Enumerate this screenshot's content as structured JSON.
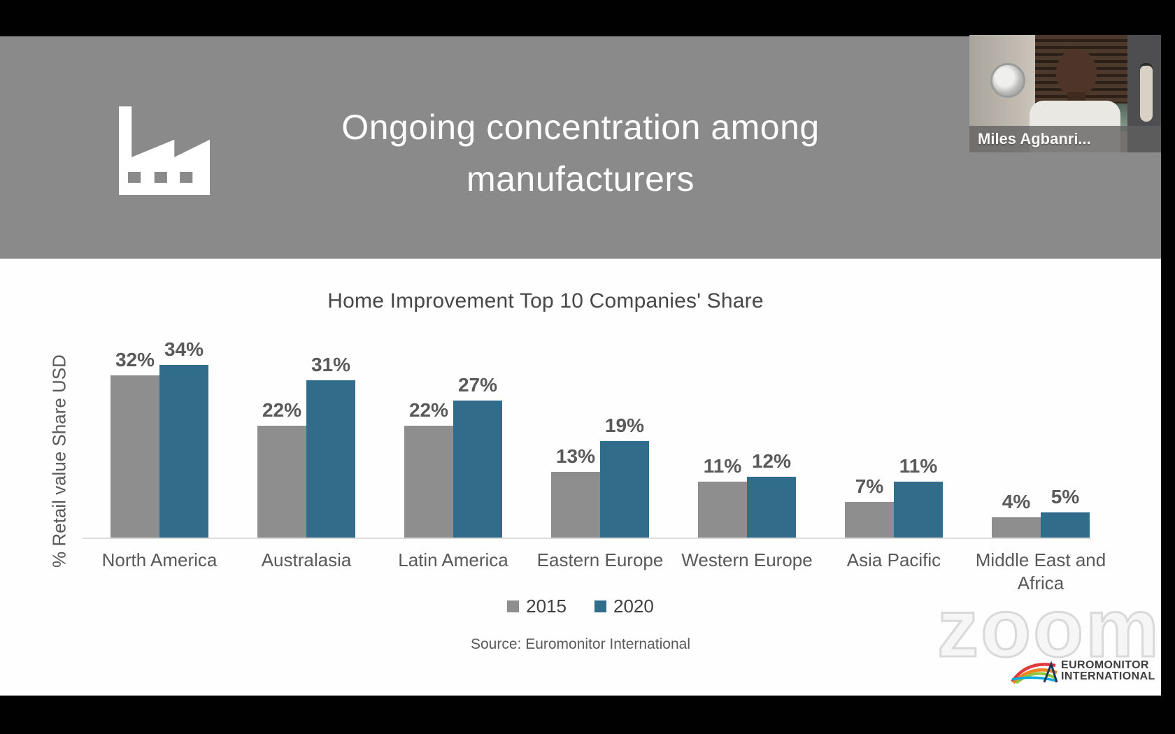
{
  "header": {
    "title_line1": "Ongoing concentration among",
    "title_line2": "manufacturers"
  },
  "webcam": {
    "name": "Miles Agbanri..."
  },
  "chart_data": {
    "type": "bar",
    "title": "Home Improvement Top 10 Companies' Share",
    "ylabel": "% Retail value Share USD",
    "xlabel": "",
    "categories": [
      "North America",
      "Australasia",
      "Latin America",
      "Eastern Europe",
      "Western Europe",
      "Asia Pacific",
      "Middle East and Africa"
    ],
    "series": [
      {
        "name": "2015",
        "color": "#8e8e8e",
        "values": [
          32,
          22,
          22,
          13,
          11,
          7,
          4
        ]
      },
      {
        "name": "2020",
        "color": "#316c8b",
        "values": [
          34,
          31,
          27,
          19,
          12,
          11,
          5
        ]
      }
    ],
    "value_suffix": "%",
    "ylim": [
      0,
      40
    ],
    "grid": false,
    "legend_position": "bottom",
    "source": "Source: Euromonitor International"
  },
  "watermark": {
    "zoom_label": "zoom"
  },
  "branding": {
    "line1": "EUROMONITOR",
    "line2": "INTERNATIONAL"
  },
  "colors": {
    "header_band": "#8a8a8a",
    "bar_2015": "#8e8e8e",
    "bar_2020": "#316c8b",
    "text_primary": "#595959"
  }
}
